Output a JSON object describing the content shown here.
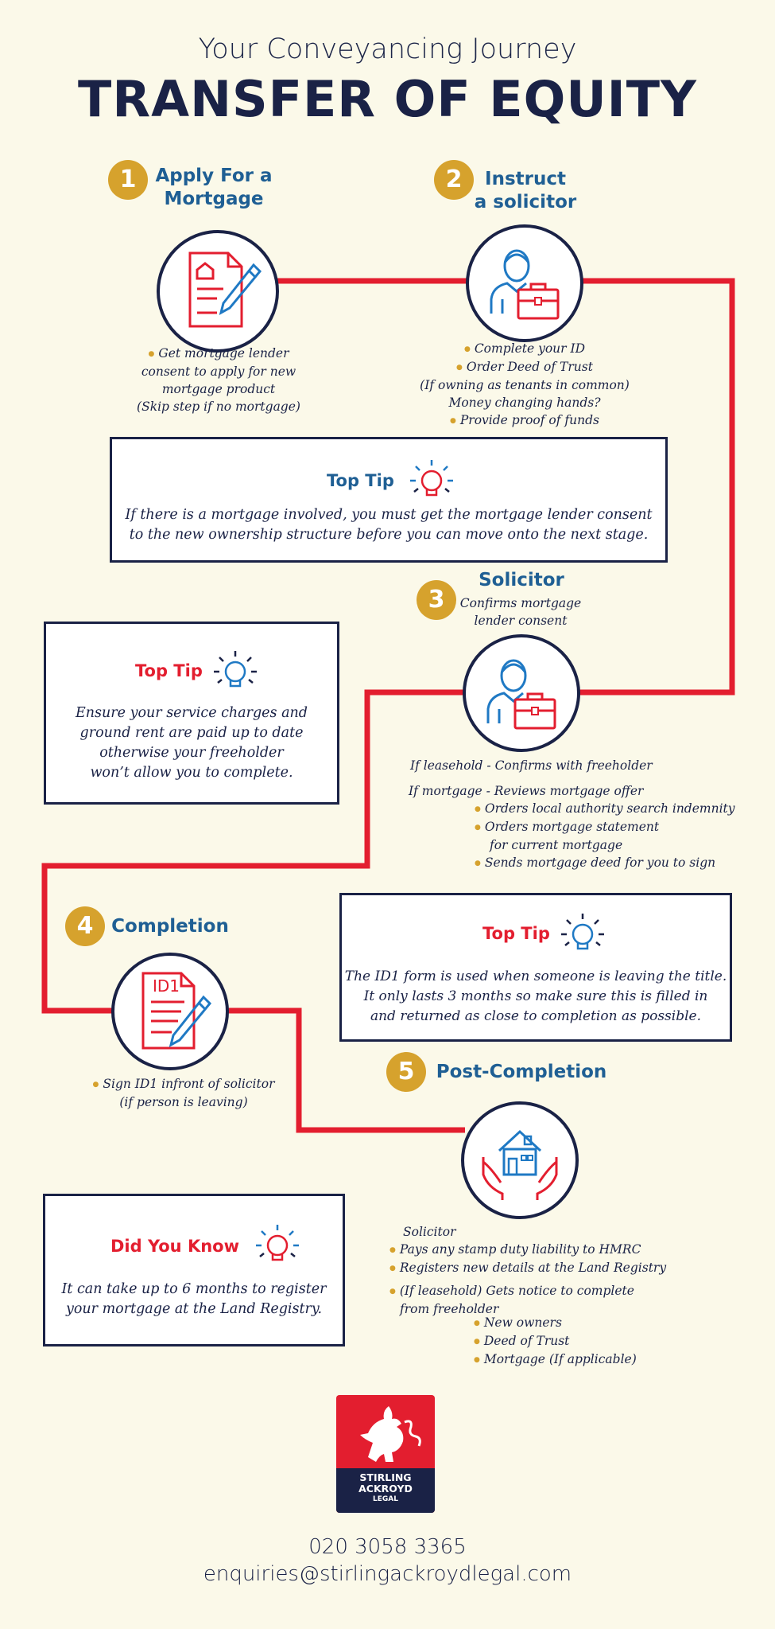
{
  "header": {
    "subtitle": "Your Conveyancing Journey",
    "title": "TRANSFER OF EQUITY"
  },
  "colors": {
    "accent_red": "#e31e2f",
    "navy": "#1a2246",
    "gold": "#d6a22d",
    "blue": "#1f5f94",
    "background": "#fbf9e9"
  },
  "steps": [
    {
      "number": "1",
      "title_line1": "Apply For a",
      "title_line2": "Mortgage",
      "icon": "document-pen-icon",
      "lines": [
        "Get mortgage lender",
        "consent to apply for new",
        "mortgage product",
        "(Skip step if no mortgage)"
      ]
    },
    {
      "number": "2",
      "title_line1": "Instruct",
      "title_line2": "a solicitor",
      "icon": "solicitor-briefcase-icon",
      "lines": [
        "Complete your ID",
        "Order Deed of Trust",
        "(If owning as tenants in common)",
        "Money changing hands?",
        "Provide proof of funds"
      ]
    },
    {
      "number": "3",
      "title_line1": "Solicitor",
      "subtitle_line1": "Confirms mortgage",
      "subtitle_line2": "lender consent",
      "icon": "solicitor-briefcase-icon",
      "leasehold": "If leasehold - Confirms with freeholder",
      "mortgage": "If mortgage - Reviews mortgage offer",
      "bullets": [
        "Orders local authority search indemnity",
        "Orders mortgage statement",
        "for current mortgage",
        "Sends mortgage deed for you to sign"
      ]
    },
    {
      "number": "4",
      "title_line1": "Completion",
      "icon": "id1-form-icon",
      "icon_label": "ID1",
      "lines": [
        "Sign ID1 infront of solicitor",
        "(if person is leaving)"
      ]
    },
    {
      "number": "5",
      "title_line1": "Post-Completion",
      "icon": "house-hands-icon",
      "intro": "Solicitor",
      "bullets": [
        "Pays any stamp duty liability to HMRC",
        "Registers new details at the Land Registry",
        "(If leasehold) Gets notice to complete",
        "from freeholder"
      ],
      "sub_bullets": [
        "New owners",
        "Deed of Trust",
        "Mortgage (If applicable)"
      ]
    }
  ],
  "tips": [
    {
      "heading": "Top Tip",
      "icon": "lightbulb-icon",
      "lines": [
        "If there is a mortgage involved, you must get the mortgage lender consent",
        "to the new ownership structure before you can move onto the next stage."
      ]
    },
    {
      "heading": "Top Tip",
      "icon": "lightbulb-icon",
      "lines": [
        "Ensure your service charges and",
        "ground rent are paid up to date",
        "otherwise your freeholder",
        "won’t allow you to complete."
      ]
    },
    {
      "heading": "Top Tip",
      "icon": "lightbulb-icon",
      "lines": [
        "The ID1 form is used when someone is leaving the title.",
        "It only lasts 3 months so make sure this is filled in",
        "and returned as close to completion as possible."
      ]
    },
    {
      "heading": "Did You Know",
      "icon": "lightbulb-icon",
      "lines": [
        "It can take up to 6 months to register",
        "your mortgage at the Land Registry."
      ]
    }
  ],
  "logo": {
    "line1": "STIRLING",
    "line2": "ACKROYD",
    "line3": "LEGAL",
    "icon": "griffin-icon"
  },
  "contact": {
    "phone": "020 3058 3365",
    "email": "enquiries@stirlingackroydlegal.com"
  }
}
